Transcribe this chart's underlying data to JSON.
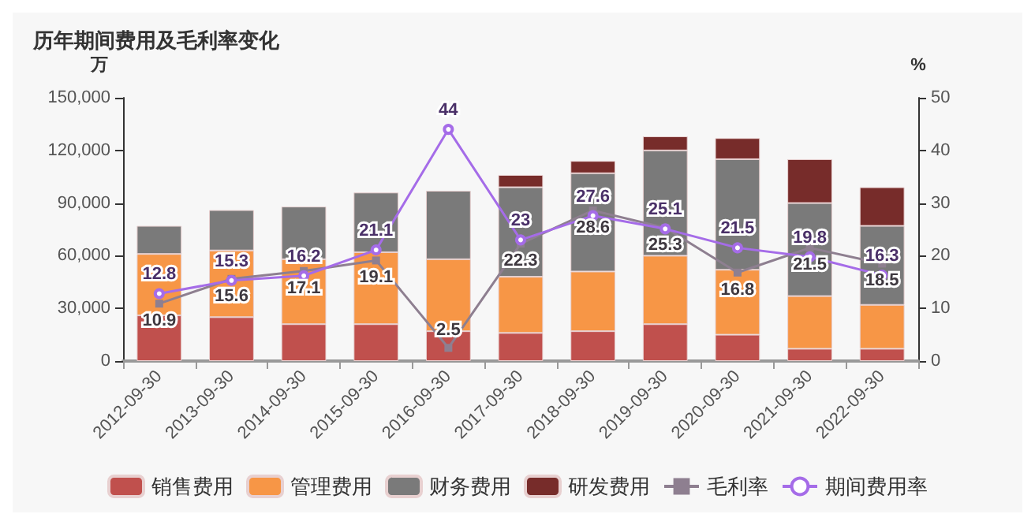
{
  "chart_data": {
    "type": "bar",
    "title": "历年期间费用及毛利率变化",
    "ylabel": "万",
    "y2label": "%",
    "stacked": true,
    "legend": "bottom",
    "grid": false,
    "categories": [
      "2012-09-30",
      "2013-09-30",
      "2014-09-30",
      "2015-09-30",
      "2016-09-30",
      "2017-09-30",
      "2018-09-30",
      "2019-09-30",
      "2020-09-30",
      "2021-09-30",
      "2022-09-30"
    ],
    "series": [
      {
        "name": "销售费用",
        "color": "#c0504d",
        "values": [
          26000,
          25000,
          21000,
          21000,
          17000,
          16000,
          17000,
          21000,
          15000,
          7000,
          7000
        ]
      },
      {
        "name": "管理费用",
        "color": "#f79646",
        "values": [
          35000,
          38000,
          37000,
          41000,
          41000,
          32000,
          34000,
          39000,
          37000,
          30000,
          25000
        ]
      },
      {
        "name": "财务费用",
        "color": "#7a7a7a",
        "values": [
          16000,
          23000,
          30000,
          34000,
          39000,
          51000,
          56000,
          60000,
          63000,
          53000,
          45000
        ]
      },
      {
        "name": "研发费用",
        "color": "#772c2a",
        "values": [
          null,
          null,
          null,
          null,
          null,
          7000,
          7000,
          8000,
          12000,
          25000,
          22000
        ]
      },
      {
        "name": "毛利率",
        "type": "line",
        "axis": "y2",
        "marker": "square",
        "color": "#8e7f90",
        "values": [
          10.9,
          15.6,
          17.1,
          19.1,
          2.5,
          22.3,
          28.6,
          25.3,
          16.8,
          21.5,
          18.5
        ],
        "value_labels": [
          "10.9",
          "15.6",
          "17.1",
          "19.1",
          "2.5",
          "22.3",
          "28.6",
          "25.3",
          "16.8",
          "21.5",
          "18.5"
        ]
      },
      {
        "name": "期间费用率",
        "type": "line",
        "axis": "y2",
        "marker": "circle",
        "color": "#a56ce8",
        "values": [
          12.8,
          15.3,
          16.2,
          21.1,
          44,
          23,
          27.6,
          25.1,
          21.5,
          19.8,
          16.3
        ],
        "value_labels": [
          "12.8",
          "15.3",
          "16.2",
          "21.1",
          "44",
          "23",
          "27.6",
          "25.1",
          "21.5",
          "19.8",
          "16.3"
        ]
      }
    ],
    "ylim": [
      0,
      150000
    ],
    "yticks": [
      0,
      {
        "value": 30000,
        "label": "30,000"
      },
      {
        "value": 60000,
        "label": "60,000"
      },
      {
        "value": 90000,
        "label": "90,000"
      },
      {
        "value": 120000,
        "label": "120,000"
      },
      {
        "value": 150000,
        "label": "150,000"
      }
    ],
    "y2lim": [
      0,
      50
    ],
    "y2ticks": [
      0,
      10,
      20,
      30,
      40,
      50
    ]
  }
}
